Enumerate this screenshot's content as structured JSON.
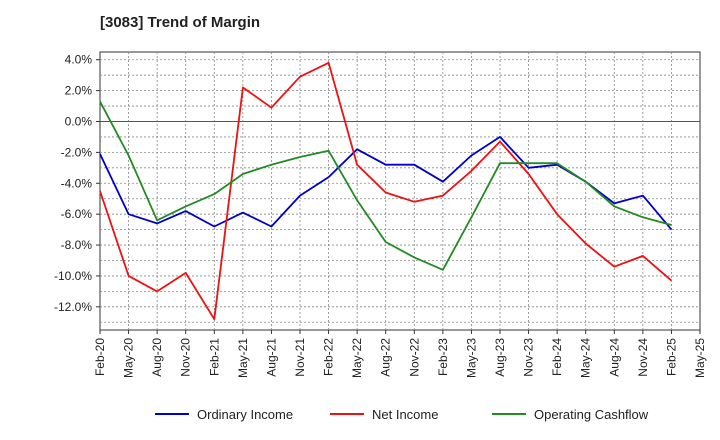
{
  "chart_data": {
    "type": "line",
    "title": "[3083]  Trend of Margin",
    "xlabel": "",
    "ylabel": "",
    "x": [
      "Feb-20",
      "May-20",
      "Aug-20",
      "Nov-20",
      "Feb-21",
      "May-21",
      "Aug-21",
      "Nov-21",
      "Feb-22",
      "May-22",
      "Aug-22",
      "Nov-22",
      "Feb-23",
      "May-23",
      "Aug-23",
      "Nov-23",
      "Feb-24",
      "May-24",
      "Aug-24",
      "Nov-24",
      "Feb-25",
      "May-25"
    ],
    "ylim": [
      -13.5,
      4.5
    ],
    "yticks": [
      4,
      2,
      0,
      -2,
      -4,
      -6,
      -8,
      -10,
      -12
    ],
    "ytick_labels": [
      "4.0%",
      "2.0%",
      "0.0%",
      "-2.0%",
      "-4.0%",
      "-6.0%",
      "-8.0%",
      "-10.0%",
      "-12.0%"
    ],
    "grid": true,
    "legend_position": "bottom",
    "series": [
      {
        "name": "Ordinary Income",
        "color": "#0000cc",
        "values": [
          -2.1,
          -6.0,
          -6.6,
          -5.8,
          -6.8,
          -5.9,
          -6.8,
          -4.8,
          -3.6,
          -1.8,
          -2.8,
          -2.8,
          -3.9,
          -2.2,
          -1.0,
          -3.0,
          -2.8,
          -3.9,
          -5.3,
          -4.8,
          -7.0,
          null
        ]
      },
      {
        "name": "Net Income",
        "color": "#ee1111",
        "values": [
          -4.5,
          -10.0,
          -11.0,
          -9.8,
          -12.8,
          2.2,
          0.9,
          2.9,
          3.8,
          -2.8,
          -4.6,
          -5.2,
          -4.8,
          -3.2,
          -1.3,
          -3.4,
          -6.0,
          -7.9,
          -9.4,
          -8.7,
          -10.3,
          null
        ]
      },
      {
        "name": "Operating Cashflow",
        "color": "#228b22",
        "values": [
          1.3,
          -2.2,
          -6.4,
          -5.5,
          -4.7,
          -3.4,
          -2.8,
          -2.3,
          -1.9,
          -5.1,
          -7.8,
          -8.8,
          -9.6,
          -6.2,
          -2.7,
          -2.7,
          -2.7,
          -3.9,
          -5.5,
          -6.2,
          -6.7,
          null
        ]
      }
    ]
  }
}
